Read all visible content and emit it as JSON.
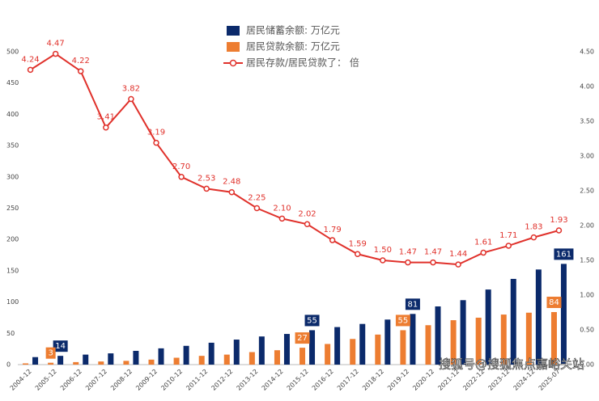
{
  "chart_data": {
    "type": "bar-line",
    "categories": [
      "2004-12",
      "2005-12",
      "2006-12",
      "2007-12",
      "2008-12",
      "2009-12",
      "2010-12",
      "2011-12",
      "2012-12",
      "2013-12",
      "2014-12",
      "2015-12",
      "2016-12",
      "2017-12",
      "2018-12",
      "2019-12",
      "2020-12",
      "2021-12",
      "2022-12",
      "2023-12",
      "2024-12",
      "2025-07"
    ],
    "series": [
      {
        "name": "居民储蓄余额: 万亿元",
        "type": "bar",
        "color": "#0b2a6b",
        "values": [
          12,
          14,
          16,
          18,
          22,
          26,
          30,
          35,
          40,
          45,
          49,
          55,
          60,
          65,
          72,
          81,
          93,
          103,
          120,
          137,
          152,
          161
        ],
        "label_indices": [
          1,
          11,
          15,
          21
        ]
      },
      {
        "name": "居民贷款余额: 万亿元",
        "type": "bar",
        "color": "#ed7d31",
        "values": [
          2,
          3,
          4,
          5,
          6,
          8,
          11,
          14,
          16,
          20,
          23,
          27,
          33,
          41,
          48,
          55,
          63,
          71,
          75,
          80,
          83,
          84
        ],
        "label_indices": [
          1,
          11,
          15,
          21
        ]
      },
      {
        "name": "居民存款/居民贷款了： 倍",
        "type": "line",
        "axis": "y2",
        "color": "#e0312b",
        "values": [
          4.24,
          4.47,
          4.22,
          3.41,
          3.82,
          3.19,
          2.7,
          2.53,
          2.48,
          2.25,
          2.1,
          2.02,
          1.79,
          1.59,
          1.5,
          1.47,
          1.47,
          1.44,
          1.61,
          1.71,
          1.83,
          1.93
        ],
        "value_labels": [
          "4.24",
          "4.47",
          "4.22",
          "3.41",
          "3.82",
          "3.19",
          "2.70",
          "2.53",
          "2.48",
          "2.25",
          "2.10",
          "2.02",
          "1.79",
          "1.59",
          "1.50",
          "1.47",
          "1.47",
          "1.44",
          "1.61",
          "1.71",
          "1.83",
          "1.93"
        ]
      }
    ],
    "ylim": [
      0,
      500
    ],
    "yticks": [
      0,
      50,
      100,
      150,
      200,
      250,
      300,
      350,
      400,
      450,
      500
    ],
    "y2lim": [
      0,
      4.5
    ],
    "y2ticks": [
      {
        "value": 0,
        "label": "0.00"
      },
      {
        "value": 0.5,
        "label": "0.50"
      },
      {
        "value": 1,
        "label": "1.00"
      },
      {
        "value": 1.5,
        "label": "1.50"
      },
      {
        "value": 2,
        "label": "2.00"
      },
      {
        "value": 2.5,
        "label": "2.50"
      },
      {
        "value": 3,
        "label": "3.00"
      },
      {
        "value": 3.5,
        "label": "3.50"
      },
      {
        "value": 4,
        "label": "4.00"
      },
      {
        "value": 4.5,
        "label": "4.50"
      }
    ],
    "watermark": "搜狐号@搜狐焦点嘉峪关站"
  }
}
